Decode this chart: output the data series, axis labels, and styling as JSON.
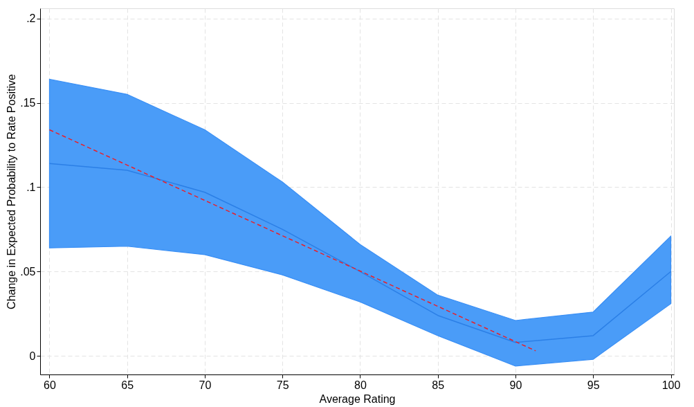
{
  "chart_data": {
    "type": "line",
    "xlabel": "Average Rating",
    "ylabel": "Change in Expected Probability to Rate Positive",
    "x": [
      60,
      65,
      70,
      75,
      80,
      85,
      90,
      95,
      100
    ],
    "series": [
      {
        "color": "#2b7fe6",
        "line_style": "solid",
        "values": [
          0.114,
          0.11,
          0.097,
          0.075,
          0.05,
          0.024,
          0.008,
          0.012,
          0.05
        ],
        "lower": [
          0.064,
          0.065,
          0.06,
          0.048,
          0.032,
          0.012,
          -0.006,
          -0.002,
          0.031
        ],
        "upper": [
          0.164,
          0.155,
          0.134,
          0.103,
          0.066,
          0.036,
          0.021,
          0.026,
          0.071
        ]
      },
      {
        "color": "#e8202a",
        "line_style": "dashed",
        "x": [
          60,
          91.3
        ],
        "values": [
          0.134,
          0.003
        ]
      }
    ],
    "xlim": [
      59.4,
      100.2
    ],
    "xticks": [
      60,
      65,
      70,
      75,
      80,
      85,
      90,
      95,
      100
    ],
    "ylim": [
      -0.011,
      0.206
    ],
    "yticks": [
      0,
      {
        "value": 0.05,
        "label": ".05"
      },
      {
        "value": 0.1,
        "label": ".1"
      },
      {
        "value": 0.15,
        "label": ".15"
      },
      {
        "value": 0.2,
        "label": ".2"
      }
    ],
    "grid": true
  }
}
